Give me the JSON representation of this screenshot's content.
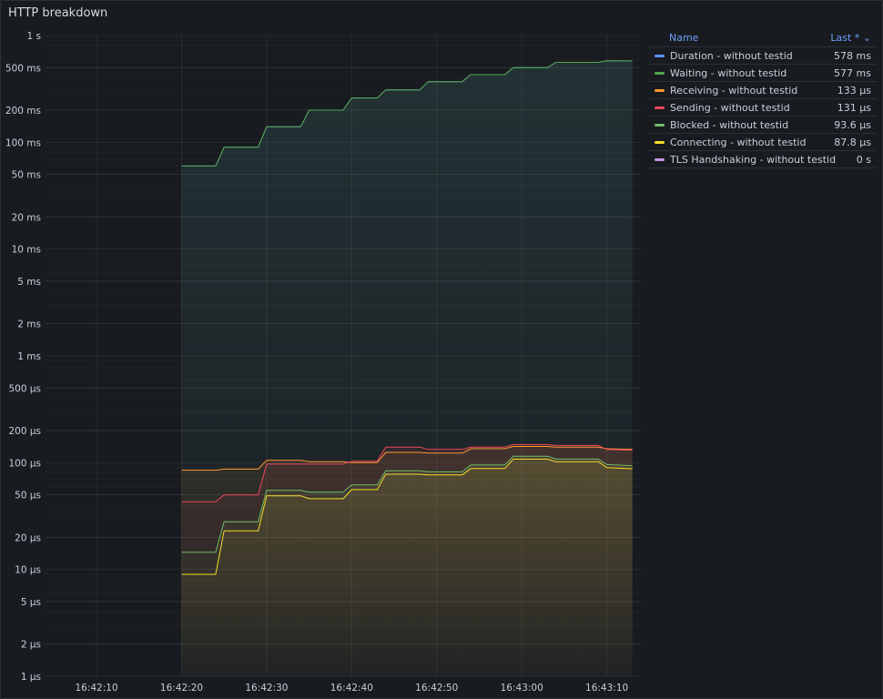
{
  "panel": {
    "title": "HTTP breakdown"
  },
  "legend": {
    "name_header": "Name",
    "last_header": "Last * ⌄",
    "items": [
      {
        "name": "Duration - without testid",
        "value": "578 ms",
        "color": "#5794f2"
      },
      {
        "name": "Waiting - without testid",
        "value": "577 ms",
        "color": "#56a64b"
      },
      {
        "name": "Receiving - without testid",
        "value": "133 µs",
        "color": "#ff9830"
      },
      {
        "name": "Sending - without testid",
        "value": "131 µs",
        "color": "#f2495c"
      },
      {
        "name": "Blocked - without testid",
        "value": "93.6 µs",
        "color": "#73bf69"
      },
      {
        "name": "Connecting - without testid",
        "value": "87.8 µs",
        "color": "#fade2a"
      },
      {
        "name": "TLS Handshaking - without testid",
        "value": "0 s",
        "color": "#ca95e5"
      }
    ]
  },
  "chart_data": {
    "type": "line",
    "title": "HTTP breakdown",
    "yscale": "log",
    "ylim_seconds": [
      1e-06,
      1
    ],
    "y_ticks": [
      {
        "v": 1,
        "label": "1 s"
      },
      {
        "v": 0.5,
        "label": "500 ms"
      },
      {
        "v": 0.2,
        "label": "200 ms"
      },
      {
        "v": 0.1,
        "label": "100 ms"
      },
      {
        "v": 0.05,
        "label": "50 ms"
      },
      {
        "v": 0.02,
        "label": "20 ms"
      },
      {
        "v": 0.01,
        "label": "10 ms"
      },
      {
        "v": 0.005,
        "label": "5 ms"
      },
      {
        "v": 0.002,
        "label": "2 ms"
      },
      {
        "v": 0.001,
        "label": "1 ms"
      },
      {
        "v": 0.0005,
        "label": "500 µs"
      },
      {
        "v": 0.0002,
        "label": "200 µs"
      },
      {
        "v": 0.0001,
        "label": "100 µs"
      },
      {
        "v": 5e-05,
        "label": "50 µs"
      },
      {
        "v": 2e-05,
        "label": "20 µs"
      },
      {
        "v": 1e-05,
        "label": "10 µs"
      },
      {
        "v": 5e-06,
        "label": "5 µs"
      },
      {
        "v": 2e-06,
        "label": "2 µs"
      },
      {
        "v": 1e-06,
        "label": "1 µs"
      }
    ],
    "xlim": [
      "16:42:04",
      "16:43:14"
    ],
    "x_ticks": [
      "16:42:10",
      "16:42:20",
      "16:42:30",
      "16:42:40",
      "16:42:50",
      "16:43:00",
      "16:43:10"
    ],
    "series": [
      {
        "name": "Duration - without testid",
        "color": "#5794f2",
        "points": [
          [
            "16:42:20",
            0.06
          ],
          [
            "16:42:24",
            0.06
          ],
          [
            "16:42:25",
            0.09
          ],
          [
            "16:42:29",
            0.09
          ],
          [
            "16:42:30",
            0.14
          ],
          [
            "16:42:34",
            0.14
          ],
          [
            "16:42:35",
            0.2
          ],
          [
            "16:42:39",
            0.2
          ],
          [
            "16:42:40",
            0.26
          ],
          [
            "16:42:43",
            0.26
          ],
          [
            "16:42:44",
            0.31
          ],
          [
            "16:42:48",
            0.31
          ],
          [
            "16:42:49",
            0.37
          ],
          [
            "16:42:53",
            0.37
          ],
          [
            "16:42:54",
            0.43
          ],
          [
            "16:42:58",
            0.43
          ],
          [
            "16:42:59",
            0.5
          ],
          [
            "16:43:03",
            0.5
          ],
          [
            "16:43:04",
            0.56
          ],
          [
            "16:43:09",
            0.56
          ],
          [
            "16:43:10",
            0.58
          ],
          [
            "16:43:13",
            0.578
          ]
        ]
      },
      {
        "name": "Waiting - without testid",
        "color": "#56a64b",
        "points": [
          [
            "16:42:20",
            0.06
          ],
          [
            "16:42:24",
            0.06
          ],
          [
            "16:42:25",
            0.09
          ],
          [
            "16:42:29",
            0.09
          ],
          [
            "16:42:30",
            0.14
          ],
          [
            "16:42:34",
            0.14
          ],
          [
            "16:42:35",
            0.2
          ],
          [
            "16:42:39",
            0.2
          ],
          [
            "16:42:40",
            0.26
          ],
          [
            "16:42:43",
            0.26
          ],
          [
            "16:42:44",
            0.31
          ],
          [
            "16:42:48",
            0.31
          ],
          [
            "16:42:49",
            0.37
          ],
          [
            "16:42:53",
            0.37
          ],
          [
            "16:42:54",
            0.43
          ],
          [
            "16:42:58",
            0.43
          ],
          [
            "16:42:59",
            0.5
          ],
          [
            "16:43:03",
            0.5
          ],
          [
            "16:43:04",
            0.56
          ],
          [
            "16:43:09",
            0.56
          ],
          [
            "16:43:10",
            0.58
          ],
          [
            "16:43:13",
            0.577
          ]
        ]
      },
      {
        "name": "Receiving - without testid",
        "color": "#ff9830",
        "points": [
          [
            "16:42:20",
            8.5e-05
          ],
          [
            "16:42:24",
            8.5e-05
          ],
          [
            "16:42:25",
            8.7e-05
          ],
          [
            "16:42:29",
            8.7e-05
          ],
          [
            "16:42:30",
            0.000105
          ],
          [
            "16:42:34",
            0.000105
          ],
          [
            "16:42:35",
            0.000102
          ],
          [
            "16:42:39",
            0.000102
          ],
          [
            "16:42:40",
            0.0001
          ],
          [
            "16:42:43",
            0.0001
          ],
          [
            "16:42:44",
            0.000125
          ],
          [
            "16:42:48",
            0.000125
          ],
          [
            "16:42:49",
            0.000123
          ],
          [
            "16:42:53",
            0.000123
          ],
          [
            "16:42:54",
            0.000135
          ],
          [
            "16:42:58",
            0.000135
          ],
          [
            "16:42:59",
            0.000142
          ],
          [
            "16:43:03",
            0.000142
          ],
          [
            "16:43:04",
            0.00014
          ],
          [
            "16:43:09",
            0.00014
          ],
          [
            "16:43:10",
            0.000135
          ],
          [
            "16:43:13",
            0.000133
          ]
        ]
      },
      {
        "name": "Sending - without testid",
        "color": "#f2495c",
        "points": [
          [
            "16:42:20",
            4.3e-05
          ],
          [
            "16:42:24",
            4.3e-05
          ],
          [
            "16:42:25",
            5e-05
          ],
          [
            "16:42:29",
            5e-05
          ],
          [
            "16:42:30",
            9.7e-05
          ],
          [
            "16:42:34",
            9.7e-05
          ],
          [
            "16:42:35",
            9.7e-05
          ],
          [
            "16:42:39",
            9.7e-05
          ],
          [
            "16:42:40",
            0.000103
          ],
          [
            "16:42:43",
            0.000103
          ],
          [
            "16:42:44",
            0.00014
          ],
          [
            "16:42:48",
            0.00014
          ],
          [
            "16:42:49",
            0.000133
          ],
          [
            "16:42:53",
            0.000133
          ],
          [
            "16:42:54",
            0.00014
          ],
          [
            "16:42:58",
            0.00014
          ],
          [
            "16:42:59",
            0.000148
          ],
          [
            "16:43:03",
            0.000148
          ],
          [
            "16:43:04",
            0.000145
          ],
          [
            "16:43:09",
            0.000145
          ],
          [
            "16:43:10",
            0.000133
          ],
          [
            "16:43:13",
            0.000131
          ]
        ]
      },
      {
        "name": "Blocked - without testid",
        "color": "#73bf69",
        "points": [
          [
            "16:42:20",
            1.45e-05
          ],
          [
            "16:42:24",
            1.45e-05
          ],
          [
            "16:42:25",
            2.8e-05
          ],
          [
            "16:42:29",
            2.8e-05
          ],
          [
            "16:42:30",
            5.5e-05
          ],
          [
            "16:42:34",
            5.5e-05
          ],
          [
            "16:42:35",
            5.3e-05
          ],
          [
            "16:42:39",
            5.3e-05
          ],
          [
            "16:42:40",
            6.2e-05
          ],
          [
            "16:42:43",
            6.2e-05
          ],
          [
            "16:42:44",
            8.4e-05
          ],
          [
            "16:42:48",
            8.4e-05
          ],
          [
            "16:42:49",
            8.2e-05
          ],
          [
            "16:42:53",
            8.2e-05
          ],
          [
            "16:42:54",
            9.5e-05
          ],
          [
            "16:42:58",
            9.5e-05
          ],
          [
            "16:42:59",
            0.000115
          ],
          [
            "16:43:03",
            0.000115
          ],
          [
            "16:43:04",
            0.000108
          ],
          [
            "16:43:09",
            0.000108
          ],
          [
            "16:43:10",
            9.6e-05
          ],
          [
            "16:43:13",
            9.36e-05
          ]
        ]
      },
      {
        "name": "Connecting - without testid",
        "color": "#fade2a",
        "points": [
          [
            "16:42:20",
            9e-06
          ],
          [
            "16:42:24",
            9e-06
          ],
          [
            "16:42:25",
            2.3e-05
          ],
          [
            "16:42:29",
            2.3e-05
          ],
          [
            "16:42:30",
            4.9e-05
          ],
          [
            "16:42:34",
            4.9e-05
          ],
          [
            "16:42:35",
            4.6e-05
          ],
          [
            "16:42:39",
            4.6e-05
          ],
          [
            "16:42:40",
            5.6e-05
          ],
          [
            "16:42:43",
            5.6e-05
          ],
          [
            "16:42:44",
            7.8e-05
          ],
          [
            "16:42:48",
            7.8e-05
          ],
          [
            "16:42:49",
            7.7e-05
          ],
          [
            "16:42:53",
            7.7e-05
          ],
          [
            "16:42:54",
            8.8e-05
          ],
          [
            "16:42:58",
            8.8e-05
          ],
          [
            "16:42:59",
            0.000108
          ],
          [
            "16:43:03",
            0.000108
          ],
          [
            "16:43:04",
            0.000102
          ],
          [
            "16:43:09",
            0.000102
          ],
          [
            "16:43:10",
            9e-05
          ],
          [
            "16:43:13",
            8.78e-05
          ]
        ]
      }
    ]
  }
}
